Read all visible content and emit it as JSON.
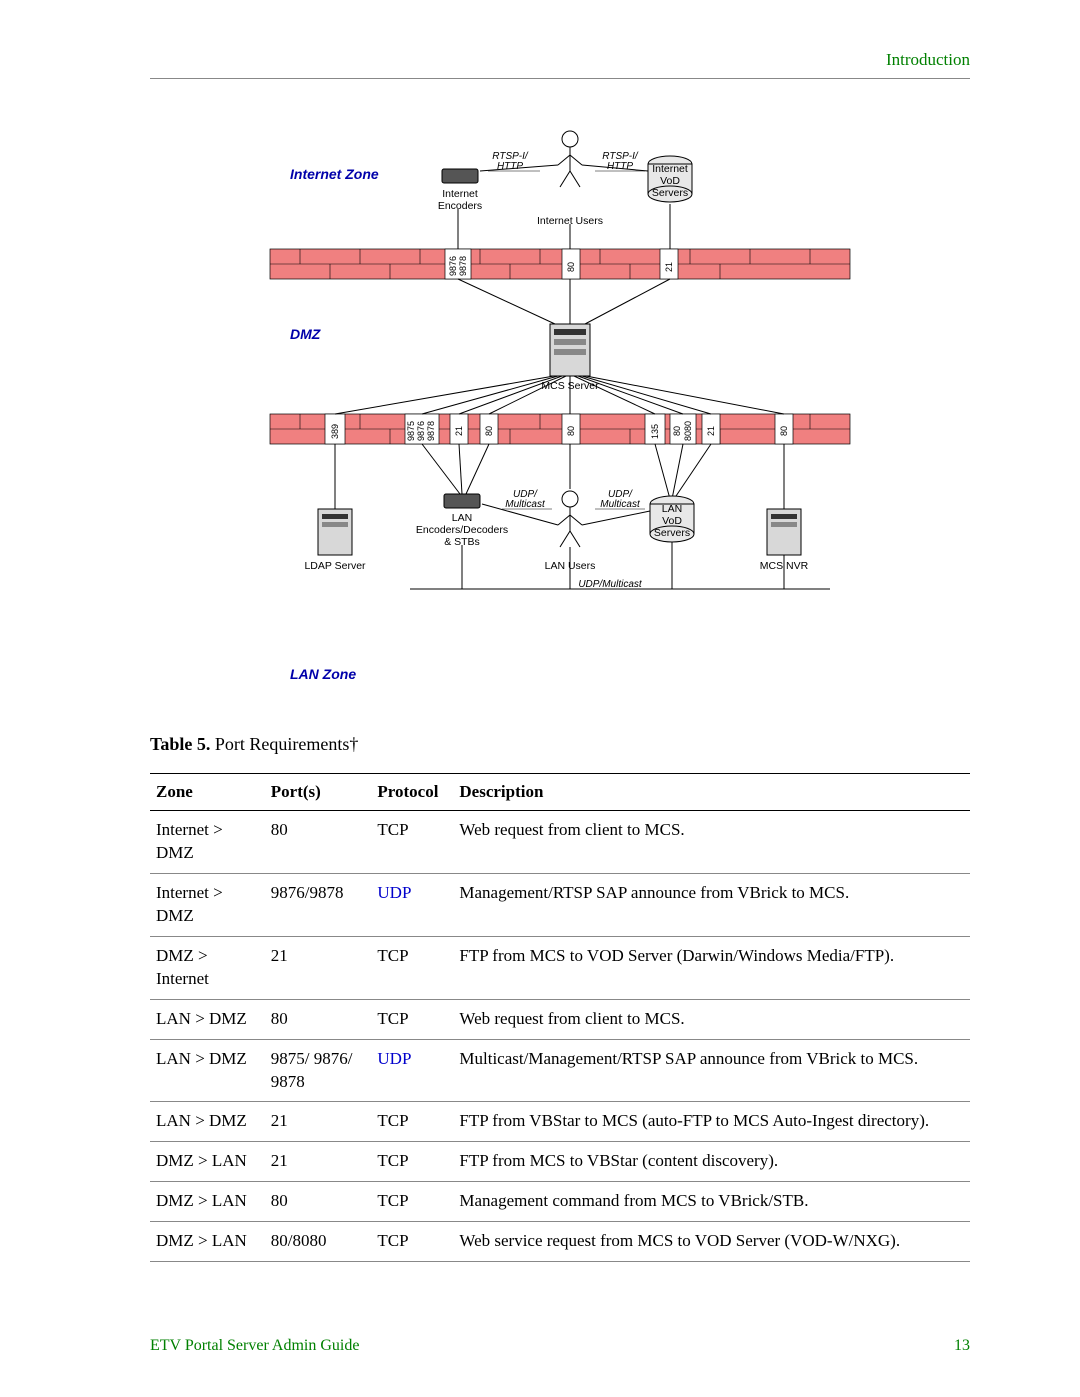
{
  "header": {
    "section_link": "Introduction"
  },
  "footer": {
    "guide": "ETV Portal Server Admin Guide",
    "page": "13"
  },
  "caption": {
    "prefix": "Table 5.",
    "text": " Port Requirements†"
  },
  "diagram": {
    "zones": {
      "internet": "Internet Zone",
      "dmz": "DMZ",
      "lan": "LAN Zone"
    },
    "labels": {
      "internet_encoders": "Internet\nEncoders",
      "internet_users": "Internet Users",
      "internet_vod": "Internet\nVoD\nServers",
      "rtsp_http_l": "RTSP-I/\nHTTP",
      "rtsp_http_r": "RTSP-I/\nHTTP",
      "mcs_server": "MCS Server",
      "udp_multi_l": "UDP/\nMulticast",
      "udp_multi_r": "UDP/\nMulticast",
      "ldap": "LDAP Server",
      "lan_enc": "LAN\nEncoders/Decoders\n& STBs",
      "lan_users": "LAN Users",
      "lan_vod": "LAN\nVoD\nServers",
      "mcs_nvr": "MCS NVR",
      "udp_multi_bottom": "UDP/Multicast"
    },
    "firewall_ports": {
      "top": [
        "9876\n9878",
        "80",
        "21"
      ],
      "bottom": [
        "389",
        "9875\n9876\n9878",
        "21",
        "80",
        "80",
        "135",
        "80\n8080",
        "21",
        "80"
      ]
    },
    "colors": {
      "firewall": "#f08080",
      "firewall_border": "#000",
      "server_fill": "#d8d8d8",
      "line": "#000"
    }
  },
  "table": {
    "columns": [
      "Zone",
      "Port(s)",
      "Protocol",
      "Description"
    ],
    "col_widths": [
      "14%",
      "13%",
      "10%",
      "63%"
    ],
    "rows": [
      {
        "zone": "Internet > DMZ",
        "ports": "80",
        "protocol": "TCP",
        "protocol_link": false,
        "desc": "Web request from client to MCS."
      },
      {
        "zone": "Internet > DMZ",
        "ports": "9876/9878",
        "protocol": "UDP",
        "protocol_link": true,
        "desc": "Management/RTSP SAP announce from VBrick to MCS."
      },
      {
        "zone": "DMZ > Internet",
        "ports": "21",
        "protocol": "TCP",
        "protocol_link": false,
        "desc": "FTP from MCS to VOD Server (Darwin/Windows Media/FTP)."
      },
      {
        "zone": "LAN > DMZ",
        "ports": "80",
        "protocol": "TCP",
        "protocol_link": false,
        "desc": "Web request from client to MCS."
      },
      {
        "zone": "LAN > DMZ",
        "ports": "9875/ 9876/ 9878",
        "protocol": "UDP",
        "protocol_link": true,
        "desc": "Multicast/Management/RTSP SAP announce from VBrick to MCS."
      },
      {
        "zone": "LAN > DMZ",
        "ports": "21",
        "protocol": "TCP",
        "protocol_link": false,
        "desc": "FTP from VBStar to MCS (auto-FTP to MCS Auto-Ingest directory)."
      },
      {
        "zone": "DMZ > LAN",
        "ports": "21",
        "protocol": "TCP",
        "protocol_link": false,
        "desc": "FTP from MCS to VBStar (content discovery)."
      },
      {
        "zone": "DMZ > LAN",
        "ports": "80",
        "protocol": "TCP",
        "protocol_link": false,
        "desc": "Management command from MCS to VBrick/STB."
      },
      {
        "zone": "DMZ > LAN",
        "ports": "80/8080",
        "protocol": "TCP",
        "protocol_link": false,
        "desc": "Web service request from MCS to VOD Server (VOD-W/NXG)."
      }
    ]
  }
}
